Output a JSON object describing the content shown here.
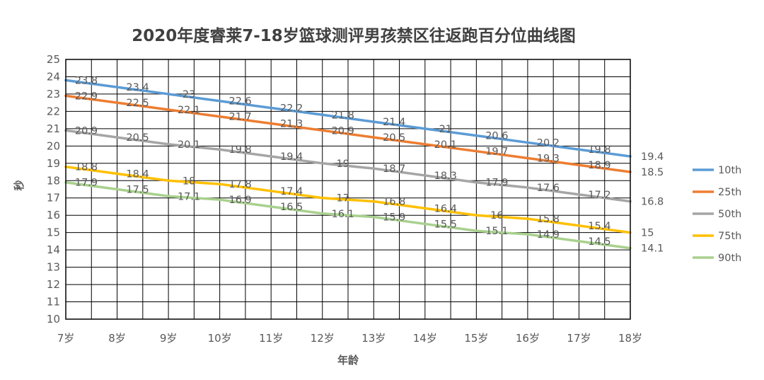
{
  "chart_data": {
    "type": "line",
    "title": "2020年度睿莱7-18岁篮球测评男孩禁区往返跑百分位曲线图",
    "xlabel": "年龄",
    "ylabel": "秒",
    "categories": [
      "7岁",
      "8岁",
      "9岁",
      "10岁",
      "11岁",
      "12岁",
      "13岁",
      "14岁",
      "15岁",
      "16岁",
      "17岁",
      "18岁"
    ],
    "ylim": [
      10,
      25
    ],
    "yticks": [
      10,
      11,
      12,
      13,
      14,
      15,
      16,
      17,
      18,
      19,
      20,
      21,
      22,
      23,
      24,
      25
    ],
    "grid": true,
    "legend_position": "right",
    "series": [
      {
        "name": "10th",
        "color": "#5B9BD5",
        "values": [
          23.8,
          23.4,
          23,
          22.6,
          22.2,
          21.8,
          21.4,
          21,
          20.6,
          20.2,
          19.8,
          19.4
        ]
      },
      {
        "name": "25th",
        "color": "#ED7D31",
        "values": [
          22.9,
          22.5,
          22.1,
          21.7,
          21.3,
          20.9,
          20.5,
          20.1,
          19.7,
          19.3,
          18.9,
          18.5
        ]
      },
      {
        "name": "50th",
        "color": "#A5A5A5",
        "values": [
          20.9,
          20.5,
          20.1,
          19.8,
          19.4,
          19,
          18.7,
          18.3,
          17.9,
          17.6,
          17.2,
          16.8
        ]
      },
      {
        "name": "75th",
        "color": "#FFC000",
        "values": [
          18.8,
          18.4,
          18,
          17.8,
          17.4,
          17,
          16.8,
          16.4,
          16,
          15.8,
          15.4,
          15
        ]
      },
      {
        "name": "90th",
        "color": "#A9D18E",
        "values": [
          17.9,
          17.5,
          17.1,
          16.9,
          16.5,
          16.1,
          15.9,
          15.5,
          15.1,
          14.9,
          14.5,
          14.1
        ]
      }
    ]
  }
}
